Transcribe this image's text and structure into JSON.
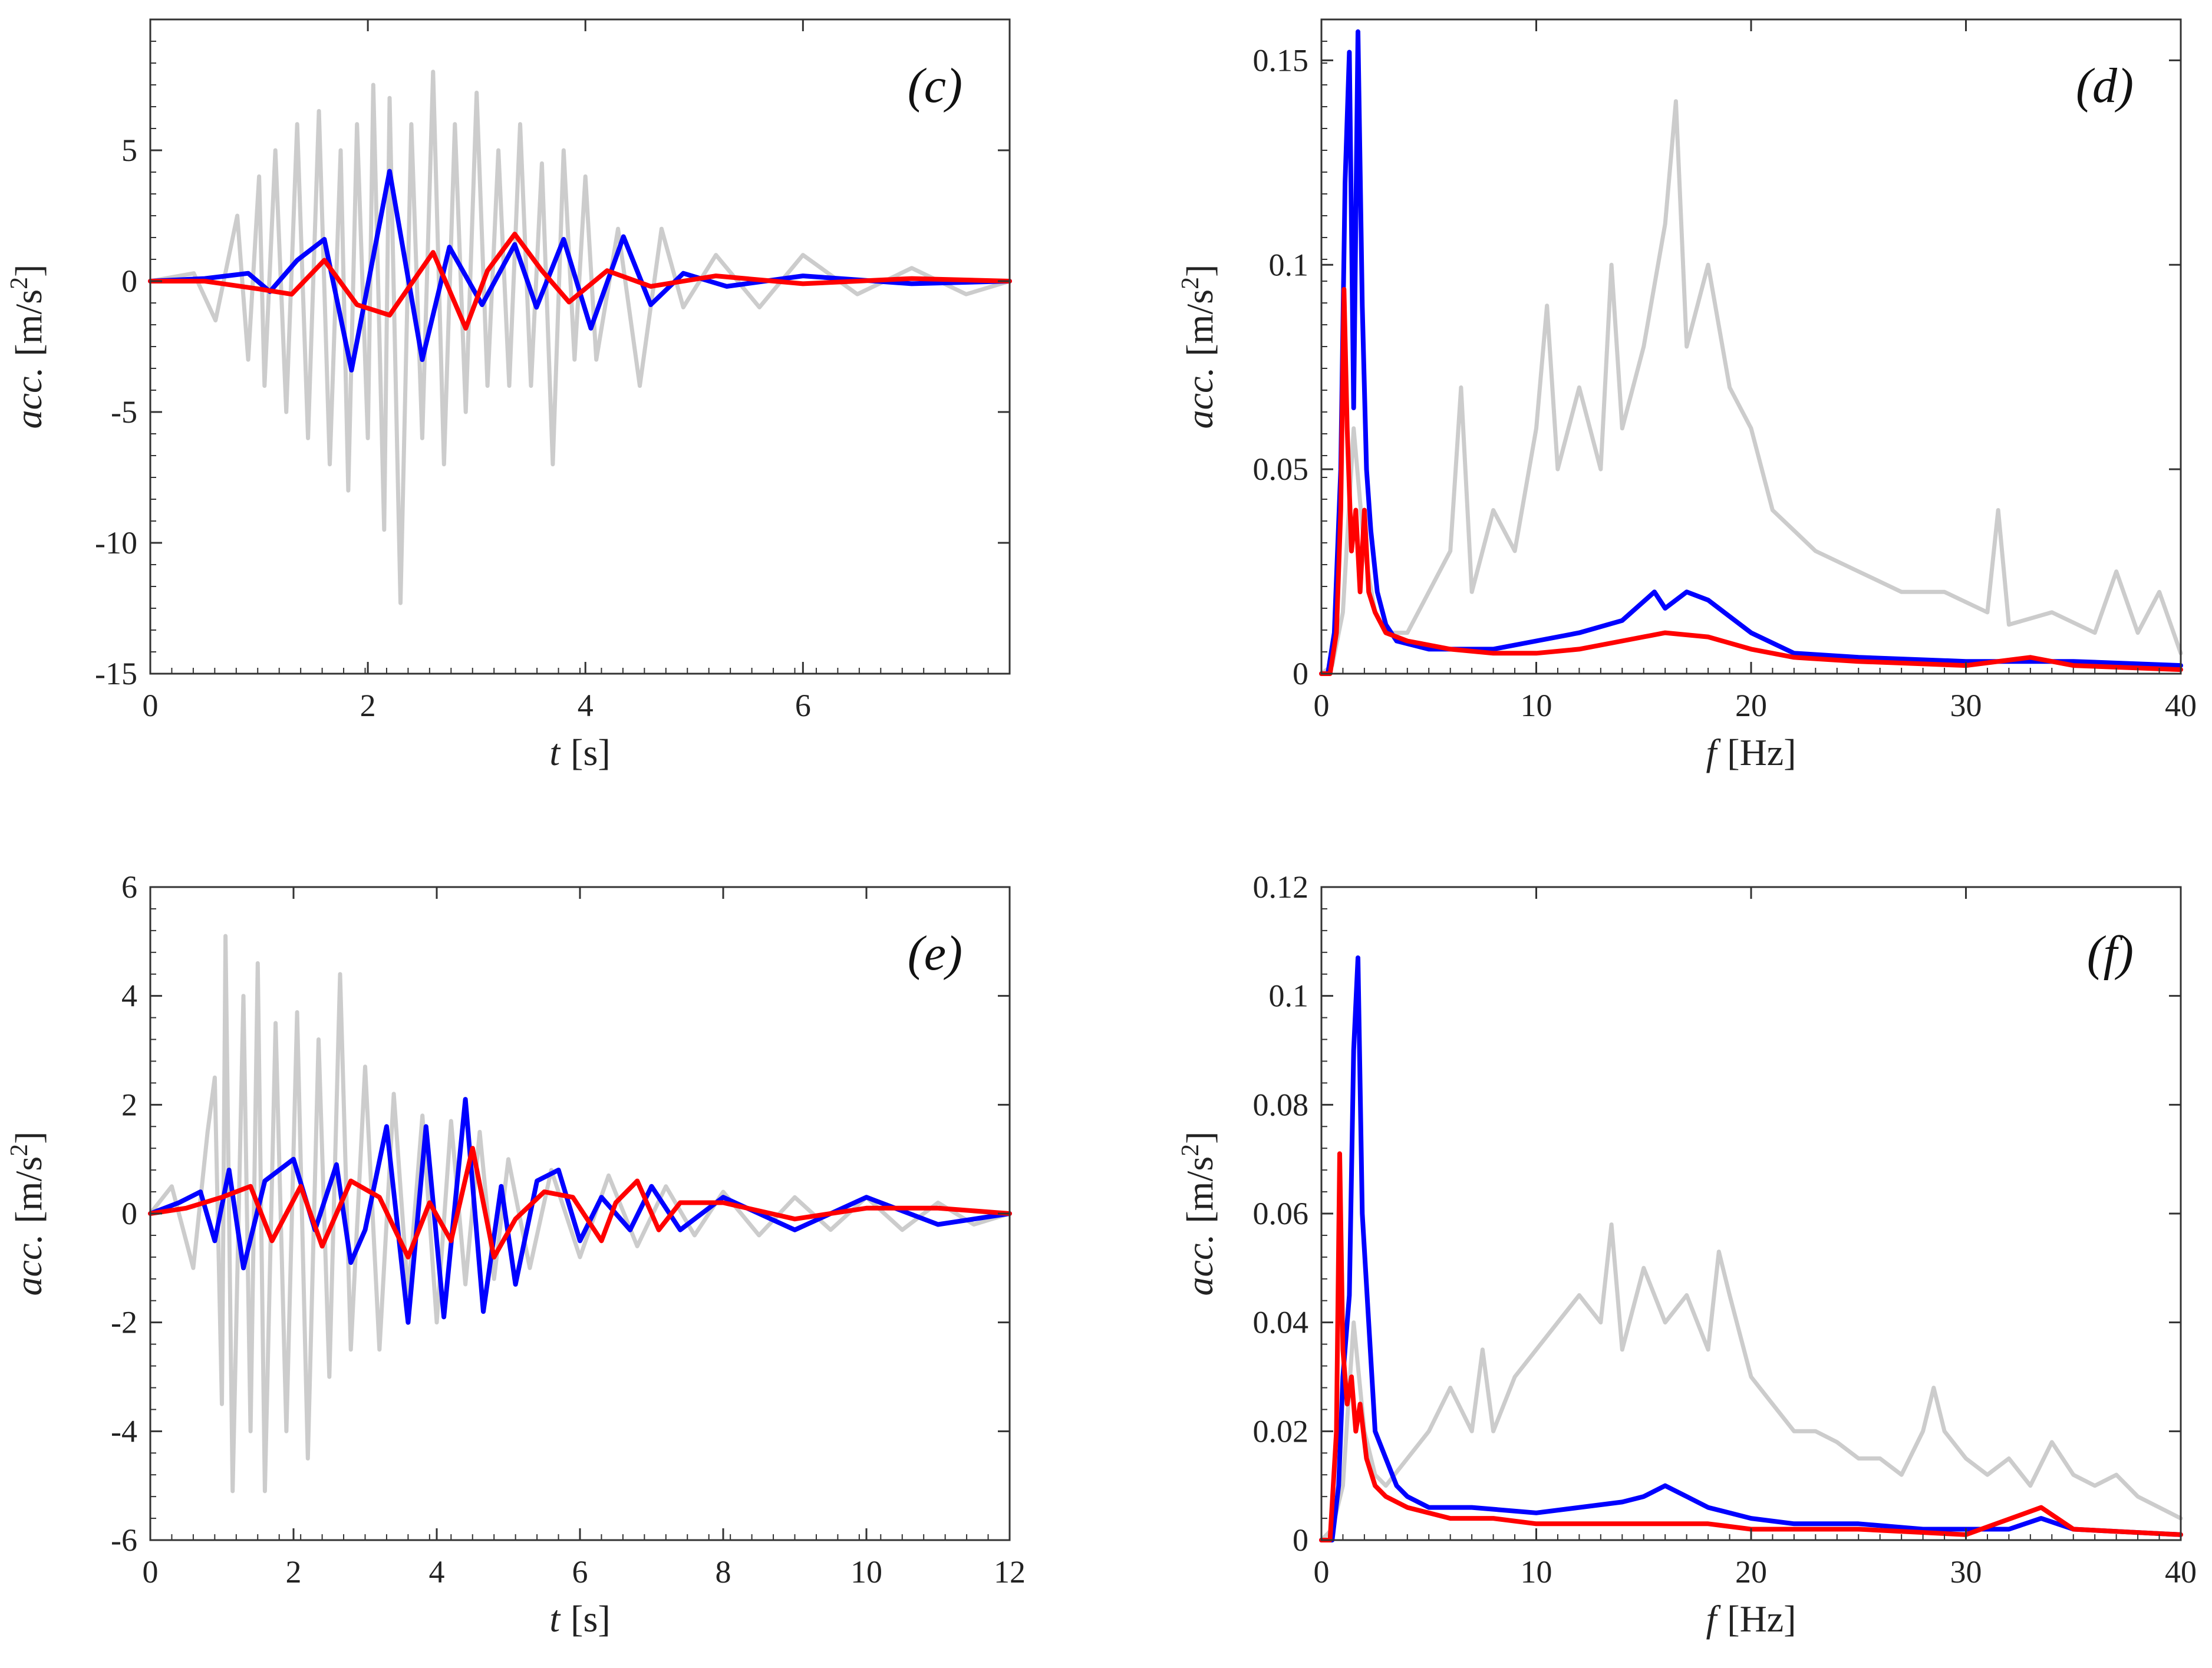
{
  "colors": {
    "input": "#cccccc",
    "blue": "#0000ff",
    "red": "#ff0000",
    "axis": "#333333"
  },
  "chart_data": [
    {
      "id": "c",
      "type": "line",
      "panel_label": "(c)",
      "xlabel_var": "t",
      "xlabel_unit": "[s]",
      "ylabel_var": "acc.",
      "ylabel_unit": "[m/s",
      "ylabel_sup": "2",
      "ylabel_close": "]",
      "xlim": [
        0,
        7.9
      ],
      "ylim": [
        -15,
        10
      ],
      "xticks": [
        0,
        2,
        4,
        6
      ],
      "xtick_labels": [
        "0",
        "2",
        "4",
        "6"
      ],
      "yticks": [
        -15,
        -10,
        -5,
        0,
        5
      ],
      "ytick_labels": [
        "-15",
        "-10",
        "-5",
        "0",
        "5"
      ],
      "series": [
        {
          "name": "input",
          "color": "#cccccc",
          "x": [
            0,
            0.4,
            0.6,
            0.8,
            0.9,
            1.0,
            1.05,
            1.15,
            1.25,
            1.35,
            1.45,
            1.55,
            1.65,
            1.75,
            1.82,
            1.9,
            2.0,
            2.05,
            2.15,
            2.2,
            2.3,
            2.4,
            2.5,
            2.6,
            2.7,
            2.8,
            2.9,
            3.0,
            3.1,
            3.2,
            3.3,
            3.4,
            3.5,
            3.6,
            3.7,
            3.8,
            3.9,
            4.0,
            4.1,
            4.3,
            4.5,
            4.7,
            4.9,
            5.2,
            5.6,
            6.0,
            6.5,
            7.0,
            7.5,
            7.9
          ],
          "values": [
            0,
            0.3,
            -1.5,
            2.5,
            -3,
            4,
            -4,
            5,
            -5,
            6,
            -6,
            6.5,
            -7,
            5,
            -8,
            6,
            -6,
            7.5,
            -9.5,
            7,
            -12.3,
            6,
            -6,
            8,
            -7,
            6,
            -5,
            7.2,
            -4,
            5,
            -4,
            6,
            -4,
            4.5,
            -7,
            5,
            -3,
            4,
            -3,
            2,
            -4,
            2,
            -1,
            1,
            -1,
            1,
            -0.5,
            0.5,
            -0.5,
            0
          ]
        },
        {
          "name": "blue",
          "color": "#0000ff",
          "x": [
            0,
            0.5,
            0.9,
            1.1,
            1.35,
            1.6,
            1.85,
            2.2,
            2.5,
            2.75,
            3.05,
            3.35,
            3.55,
            3.8,
            4.05,
            4.35,
            4.6,
            4.9,
            5.3,
            6.0,
            7.0,
            7.9
          ],
          "values": [
            0,
            0.1,
            0.3,
            -0.4,
            0.8,
            1.6,
            -3.4,
            4.2,
            -3.0,
            1.3,
            -0.9,
            1.4,
            -1.0,
            1.6,
            -1.8,
            1.7,
            -0.9,
            0.3,
            -0.2,
            0.2,
            -0.1,
            0
          ]
        },
        {
          "name": "red",
          "color": "#ff0000",
          "x": [
            0,
            0.5,
            1.0,
            1.3,
            1.6,
            1.9,
            2.2,
            2.6,
            2.9,
            3.1,
            3.35,
            3.6,
            3.85,
            4.2,
            4.6,
            5.2,
            6.0,
            7.0,
            7.9
          ],
          "values": [
            0,
            0,
            -0.3,
            -0.5,
            0.8,
            -0.9,
            -1.3,
            1.1,
            -1.8,
            0.4,
            1.8,
            0.4,
            -0.8,
            0.4,
            -0.2,
            0.2,
            -0.1,
            0.1,
            0
          ]
        }
      ]
    },
    {
      "id": "d",
      "type": "line",
      "panel_label": "(d)",
      "xlabel_var": "f",
      "xlabel_unit": "[Hz]",
      "ylabel_var": "acc.",
      "ylabel_unit": "[m/s",
      "ylabel_sup": "2",
      "ylabel_close": "]",
      "xlim": [
        0,
        40
      ],
      "ylim": [
        0,
        0.16
      ],
      "xticks": [
        0,
        10,
        20,
        30,
        40
      ],
      "xtick_labels": [
        "0",
        "10",
        "20",
        "30",
        "40"
      ],
      "yticks": [
        0,
        0.05,
        0.1,
        0.15
      ],
      "ytick_labels": [
        "0",
        "0.05",
        "0.1",
        "0.15"
      ],
      "series": [
        {
          "name": "input",
          "color": "#cccccc",
          "x": [
            0,
            0.5,
            1,
            1.5,
            2,
            2.5,
            3,
            4,
            5,
            6,
            6.5,
            7,
            8,
            9,
            10,
            10.5,
            11,
            12,
            13,
            13.5,
            14,
            15,
            16,
            16.5,
            17,
            18,
            19,
            20,
            21,
            22,
            23,
            25,
            27,
            29,
            31,
            31.5,
            32,
            34,
            36,
            37,
            38,
            39,
            40
          ],
          "values": [
            0,
            0.002,
            0.015,
            0.06,
            0.03,
            0.015,
            0.01,
            0.01,
            0.02,
            0.03,
            0.07,
            0.02,
            0.04,
            0.03,
            0.06,
            0.09,
            0.05,
            0.07,
            0.05,
            0.1,
            0.06,
            0.08,
            0.11,
            0.14,
            0.08,
            0.1,
            0.07,
            0.06,
            0.04,
            0.035,
            0.03,
            0.025,
            0.02,
            0.02,
            0.015,
            0.04,
            0.012,
            0.015,
            0.01,
            0.025,
            0.01,
            0.02,
            0.005
          ]
        },
        {
          "name": "blue",
          "color": "#0000ff",
          "x": [
            0,
            0.3,
            0.6,
            0.9,
            1.1,
            1.3,
            1.5,
            1.7,
            1.9,
            2.1,
            2.3,
            2.6,
            3,
            3.5,
            5,
            8,
            10,
            12,
            14,
            15.5,
            16,
            17,
            18,
            19,
            20,
            22,
            25,
            30,
            35,
            40
          ],
          "values": [
            0,
            0,
            0.01,
            0.05,
            0.12,
            0.152,
            0.065,
            0.157,
            0.09,
            0.05,
            0.035,
            0.02,
            0.012,
            0.008,
            0.006,
            0.006,
            0.008,
            0.01,
            0.013,
            0.02,
            0.016,
            0.02,
            0.018,
            0.014,
            0.01,
            0.005,
            0.004,
            0.003,
            0.003,
            0.002
          ]
        },
        {
          "name": "red",
          "color": "#ff0000",
          "x": [
            0,
            0.4,
            0.7,
            0.9,
            1.05,
            1.2,
            1.4,
            1.6,
            1.8,
            2.0,
            2.2,
            2.5,
            3,
            4,
            6,
            8,
            10,
            12,
            14,
            16,
            18,
            20,
            22,
            25,
            30,
            33,
            35,
            40
          ],
          "values": [
            0,
            0,
            0.01,
            0.04,
            0.094,
            0.06,
            0.03,
            0.04,
            0.02,
            0.04,
            0.02,
            0.015,
            0.01,
            0.008,
            0.006,
            0.005,
            0.005,
            0.006,
            0.008,
            0.01,
            0.009,
            0.006,
            0.004,
            0.003,
            0.002,
            0.004,
            0.002,
            0.001
          ]
        }
      ]
    },
    {
      "id": "e",
      "type": "line",
      "panel_label": "(e)",
      "xlabel_var": "t",
      "xlabel_unit": "[s]",
      "ylabel_var": "acc.",
      "ylabel_unit": "[m/s",
      "ylabel_sup": "2",
      "ylabel_close": "]",
      "xlim": [
        0,
        12
      ],
      "ylim": [
        -6,
        6
      ],
      "xticks": [
        0,
        2,
        4,
        6,
        8,
        10,
        12
      ],
      "xtick_labels": [
        "0",
        "2",
        "4",
        "6",
        "8",
        "10",
        "12"
      ],
      "yticks": [
        -6,
        -4,
        -2,
        0,
        2,
        4,
        6
      ],
      "ytick_labels": [
        "-6",
        "-4",
        "-2",
        "0",
        "2",
        "4",
        "6"
      ],
      "series": [
        {
          "name": "input",
          "color": "#cccccc",
          "x": [
            0,
            0.3,
            0.6,
            0.8,
            0.9,
            1.0,
            1.05,
            1.15,
            1.3,
            1.4,
            1.5,
            1.6,
            1.75,
            1.9,
            2.05,
            2.2,
            2.35,
            2.5,
            2.65,
            2.8,
            3.0,
            3.2,
            3.4,
            3.6,
            3.8,
            4.0,
            4.2,
            4.4,
            4.6,
            4.8,
            5.0,
            5.3,
            5.6,
            6.0,
            6.4,
            6.8,
            7.2,
            7.6,
            8.0,
            8.5,
            9.0,
            9.5,
            10.0,
            10.5,
            11.0,
            11.5,
            12.0
          ],
          "values": [
            0,
            0.5,
            -1,
            1.5,
            2.5,
            -3.5,
            5.1,
            -5.1,
            4,
            -4,
            4.6,
            -5.1,
            3.5,
            -4,
            3.7,
            -4.5,
            3.2,
            -3,
            4.4,
            -2.5,
            2.7,
            -2.5,
            2.2,
            -1.5,
            1.8,
            -2,
            1.7,
            -1.3,
            1.5,
            -1.2,
            1,
            -1,
            0.8,
            -0.8,
            0.7,
            -0.6,
            0.5,
            -0.4,
            0.4,
            -0.4,
            0.3,
            -0.3,
            0.3,
            -0.3,
            0.2,
            -0.2,
            0
          ]
        },
        {
          "name": "blue",
          "color": "#0000ff",
          "x": [
            0,
            0.4,
            0.7,
            0.9,
            1.1,
            1.3,
            1.6,
            2.0,
            2.3,
            2.6,
            2.8,
            3.0,
            3.3,
            3.6,
            3.85,
            4.1,
            4.4,
            4.65,
            4.9,
            5.1,
            5.4,
            5.7,
            6.0,
            6.3,
            6.7,
            7.0,
            7.4,
            8.0,
            9.0,
            10.0,
            11.0,
            12.0
          ],
          "values": [
            0,
            0.2,
            0.4,
            -0.5,
            0.8,
            -1.0,
            0.6,
            1.0,
            -0.3,
            0.9,
            -0.9,
            -0.3,
            1.6,
            -2.0,
            1.6,
            -1.9,
            2.1,
            -1.8,
            0.5,
            -1.3,
            0.6,
            0.8,
            -0.5,
            0.3,
            -0.3,
            0.5,
            -0.3,
            0.3,
            -0.3,
            0.3,
            -0.2,
            0
          ]
        },
        {
          "name": "red",
          "color": "#ff0000",
          "x": [
            0,
            0.5,
            1.0,
            1.4,
            1.7,
            2.1,
            2.4,
            2.8,
            3.2,
            3.6,
            3.9,
            4.2,
            4.5,
            4.8,
            5.1,
            5.5,
            5.9,
            6.3,
            6.5,
            6.8,
            7.1,
            7.4,
            8.0,
            9.0,
            10.0,
            11.0,
            12.0
          ],
          "values": [
            0,
            0.1,
            0.3,
            0.5,
            -0.5,
            0.5,
            -0.6,
            0.6,
            0.3,
            -0.8,
            0.2,
            -0.5,
            1.2,
            -0.8,
            -0.1,
            0.4,
            0.3,
            -0.5,
            0.2,
            0.6,
            -0.3,
            0.2,
            0.2,
            -0.1,
            0.1,
            0.1,
            0
          ]
        }
      ]
    },
    {
      "id": "f",
      "type": "line",
      "panel_label": "(f)",
      "xlabel_var": "f",
      "xlabel_unit": "[Hz]",
      "ylabel_var": "acc.",
      "ylabel_unit": "[m/s",
      "ylabel_sup": "2",
      "ylabel_close": "]",
      "xlim": [
        0,
        40
      ],
      "ylim": [
        0,
        0.12
      ],
      "xticks": [
        0,
        10,
        20,
        30,
        40
      ],
      "xtick_labels": [
        "0",
        "10",
        "20",
        "30",
        "40"
      ],
      "yticks": [
        0,
        0.02,
        0.04,
        0.06,
        0.08,
        0.1,
        0.12
      ],
      "ytick_labels": [
        "0",
        "0.02",
        "0.04",
        "0.06",
        "0.08",
        "0.1",
        "0.12"
      ],
      "series": [
        {
          "name": "input",
          "color": "#cccccc",
          "x": [
            0,
            0.5,
            1,
            1.5,
            2,
            2.5,
            3,
            4,
            5,
            6,
            7,
            7.5,
            8,
            9,
            10,
            11,
            12,
            13,
            13.5,
            14,
            15,
            16,
            17,
            18,
            18.5,
            19,
            20,
            21,
            22,
            23,
            24,
            25,
            26,
            27,
            28,
            28.5,
            29,
            30,
            31,
            32,
            33,
            34,
            35,
            36,
            37,
            38,
            39,
            40
          ],
          "values": [
            0,
            0.002,
            0.01,
            0.04,
            0.02,
            0.012,
            0.01,
            0.015,
            0.02,
            0.028,
            0.02,
            0.035,
            0.02,
            0.03,
            0.035,
            0.04,
            0.045,
            0.04,
            0.058,
            0.035,
            0.05,
            0.04,
            0.045,
            0.035,
            0.053,
            0.045,
            0.03,
            0.025,
            0.02,
            0.02,
            0.018,
            0.015,
            0.015,
            0.012,
            0.02,
            0.028,
            0.02,
            0.015,
            0.012,
            0.015,
            0.01,
            0.018,
            0.012,
            0.01,
            0.012,
            0.008,
            0.006,
            0.004
          ]
        },
        {
          "name": "blue",
          "color": "#0000ff",
          "x": [
            0,
            0.5,
            0.8,
            1.0,
            1.3,
            1.5,
            1.7,
            1.9,
            2.2,
            2.5,
            3,
            3.5,
            4,
            5,
            7,
            10,
            12,
            14,
            15,
            16,
            17,
            18,
            20,
            22,
            25,
            28,
            30,
            32,
            33.5,
            35,
            40
          ],
          "values": [
            0,
            0,
            0.01,
            0.03,
            0.045,
            0.09,
            0.107,
            0.06,
            0.04,
            0.02,
            0.015,
            0.01,
            0.008,
            0.006,
            0.006,
            0.005,
            0.006,
            0.007,
            0.008,
            0.01,
            0.008,
            0.006,
            0.004,
            0.003,
            0.003,
            0.002,
            0.002,
            0.002,
            0.004,
            0.002,
            0.001
          ]
        },
        {
          "name": "red",
          "color": "#ff0000",
          "x": [
            0,
            0.4,
            0.7,
            0.85,
            1.0,
            1.2,
            1.4,
            1.6,
            1.8,
            2.1,
            2.5,
            3,
            4,
            6,
            8,
            10,
            12,
            15,
            18,
            20,
            25,
            30,
            33.5,
            35,
            40
          ],
          "values": [
            0,
            0,
            0.02,
            0.071,
            0.035,
            0.025,
            0.03,
            0.02,
            0.025,
            0.015,
            0.01,
            0.008,
            0.006,
            0.004,
            0.004,
            0.003,
            0.003,
            0.003,
            0.003,
            0.002,
            0.002,
            0.001,
            0.006,
            0.002,
            0.001
          ]
        }
      ]
    }
  ]
}
